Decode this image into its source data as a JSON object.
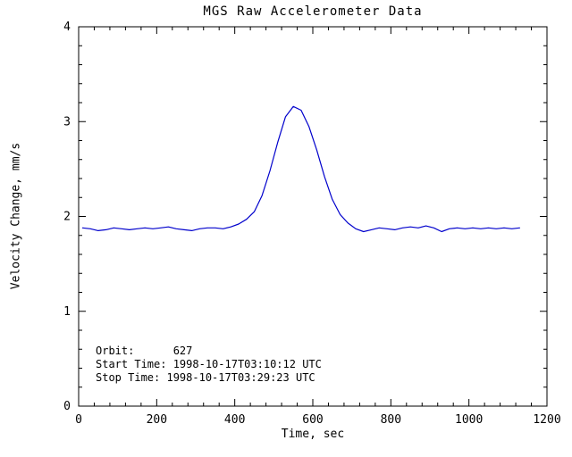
{
  "chart_data": {
    "type": "line",
    "title": "MGS Raw Accelerometer Data",
    "xlabel": "Time, sec",
    "ylabel": "Velocity Change, mm/s",
    "xlim": [
      0,
      1200
    ],
    "ylim": [
      0,
      4
    ],
    "xticks": [
      0,
      200,
      400,
      600,
      800,
      1000,
      1200
    ],
    "yticks": [
      0,
      1,
      2,
      3,
      4
    ],
    "x_minor_step": 40,
    "y_minor_step": 0.2,
    "line_color": "#0000cc",
    "frame_color": "#000000",
    "x": [
      10,
      30,
      50,
      70,
      90,
      110,
      130,
      150,
      170,
      190,
      210,
      230,
      250,
      270,
      290,
      310,
      330,
      350,
      370,
      390,
      410,
      430,
      450,
      470,
      490,
      510,
      530,
      550,
      570,
      590,
      610,
      630,
      650,
      670,
      690,
      710,
      730,
      750,
      770,
      790,
      810,
      830,
      850,
      870,
      890,
      910,
      930,
      950,
      970,
      990,
      1010,
      1030,
      1050,
      1070,
      1090,
      1110,
      1130
    ],
    "y": [
      1.88,
      1.87,
      1.85,
      1.86,
      1.88,
      1.87,
      1.86,
      1.87,
      1.88,
      1.87,
      1.88,
      1.89,
      1.87,
      1.86,
      1.85,
      1.87,
      1.88,
      1.88,
      1.87,
      1.89,
      1.92,
      1.97,
      2.05,
      2.22,
      2.48,
      2.78,
      3.05,
      3.16,
      3.12,
      2.95,
      2.7,
      2.42,
      2.18,
      2.02,
      1.93,
      1.87,
      1.84,
      1.86,
      1.88,
      1.87,
      1.86,
      1.88,
      1.89,
      1.88,
      1.9,
      1.88,
      1.84,
      1.87,
      1.88,
      1.87,
      1.88,
      1.87,
      1.88,
      1.87,
      1.88,
      1.87,
      1.88
    ],
    "annotations": [
      "Orbit:      627",
      "Start Time: 1998-10-17T03:10:12 UTC",
      "Stop Time: 1998-10-17T03:29:23 UTC"
    ]
  }
}
